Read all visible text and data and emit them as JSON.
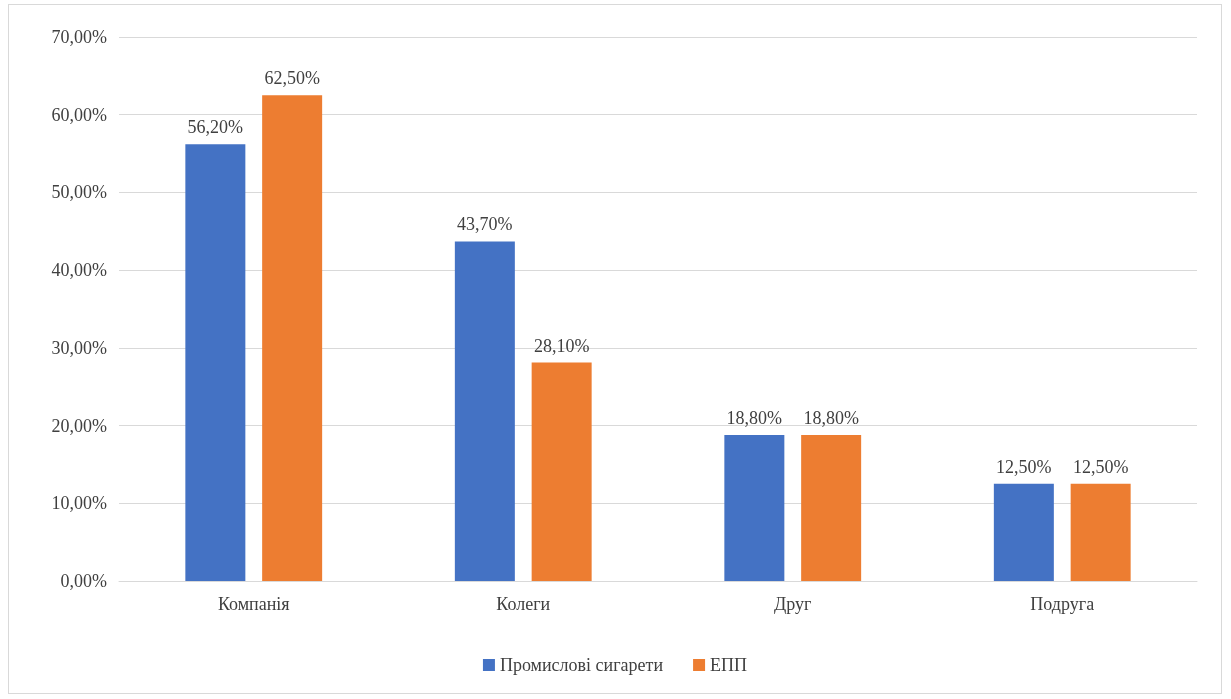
{
  "chart_data": {
    "type": "bar",
    "categories": [
      "Компанія",
      "Колеги",
      "Друг",
      "Подруга"
    ],
    "series": [
      {
        "name": "Промислові сигарети",
        "color": "#4472c4",
        "values": [
          56.2,
          43.7,
          18.8,
          12.5
        ],
        "value_labels": [
          "56,20%",
          "43,70%",
          "18,80%",
          "12,50%"
        ]
      },
      {
        "name": "ЕПП",
        "color": "#ed7d31",
        "values": [
          62.5,
          28.1,
          18.8,
          12.5
        ],
        "value_labels": [
          "62,50%",
          "28,10%",
          "18,80%",
          "12,50%"
        ]
      }
    ],
    "ylim": [
      0,
      70
    ],
    "yticks": [
      {
        "value": 0,
        "label": "0,00%"
      },
      {
        "value": 10,
        "label": "10,00%"
      },
      {
        "value": 20,
        "label": "20,00%"
      },
      {
        "value": 30,
        "label": "30,00%"
      },
      {
        "value": 40,
        "label": "40,00%"
      },
      {
        "value": 50,
        "label": "50,00%"
      },
      {
        "value": 60,
        "label": "60,00%"
      },
      {
        "value": 70,
        "label": "70,00%"
      }
    ],
    "grid": "y",
    "legend": "bottom"
  }
}
